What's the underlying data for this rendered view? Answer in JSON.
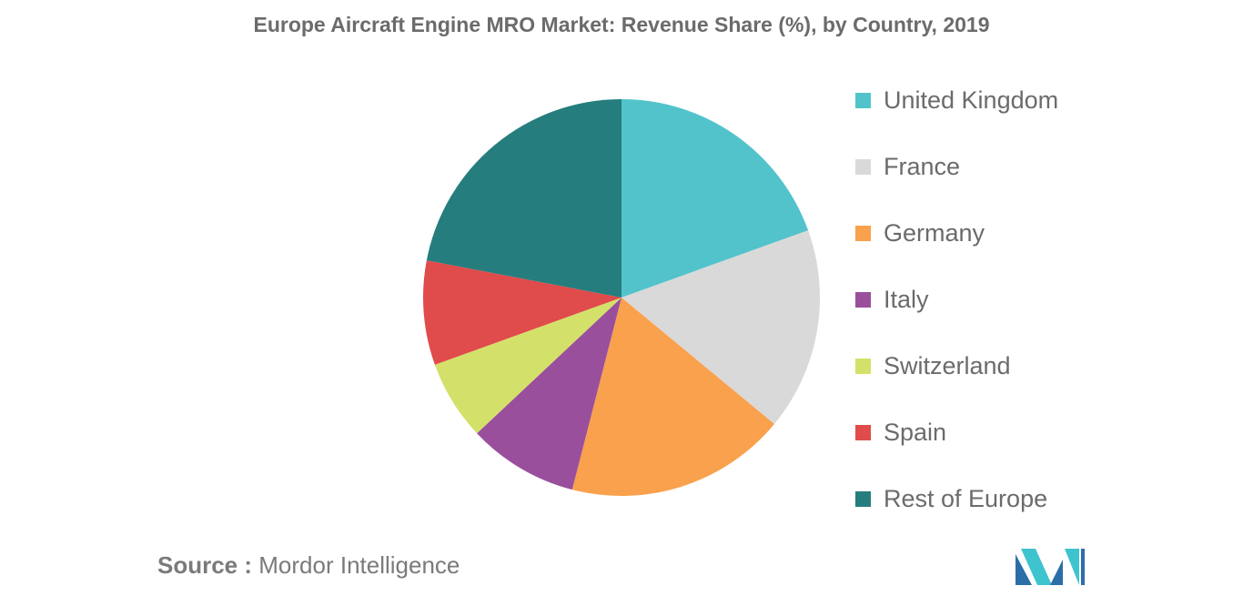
{
  "chart_data": {
    "type": "pie",
    "title": "Europe Aircraft Engine MRO Market: Revenue Share (%), by Country, 2019",
    "slices": [
      {
        "label": "United Kingdom",
        "value": 19.5,
        "color": "#52c3cb"
      },
      {
        "label": "France",
        "value": 16.5,
        "color": "#d9d9d9"
      },
      {
        "label": "Germany",
        "value": 18.0,
        "color": "#f9a14c"
      },
      {
        "label": "Italy",
        "value": 9.0,
        "color": "#9a4f9c"
      },
      {
        "label": "Switzerland",
        "value": 6.5,
        "color": "#d3e16b"
      },
      {
        "label": "Spain",
        "value": 8.5,
        "color": "#e04b4b"
      },
      {
        "label": "Rest of Europe",
        "value": 22.0,
        "color": "#257d7e"
      }
    ],
    "legend_position": "right"
  },
  "source": {
    "label": "Source :",
    "text": "Mordor Intelligence"
  },
  "logo": {
    "icon": "mordor-intelligence-logo-icon",
    "colors": [
      "#2c6ea7",
      "#3ec4cf"
    ]
  }
}
